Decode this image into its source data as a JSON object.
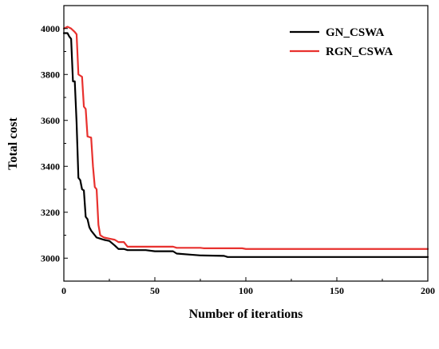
{
  "chart_data": {
    "type": "line",
    "title": "",
    "xlabel": "Number of iterations",
    "ylabel": "Total cost",
    "xlim": [
      0,
      200
    ],
    "ylim": [
      2900,
      4100
    ],
    "xticks": [
      0,
      50,
      100,
      150,
      200
    ],
    "yticks": [
      3000,
      3200,
      3400,
      3600,
      3800,
      4000
    ],
    "grid": false,
    "legend_position": "top-right",
    "series": [
      {
        "name": "GN_CSWA",
        "color": "#000000",
        "points": [
          [
            0,
            3980
          ],
          [
            2,
            3980
          ],
          [
            3,
            3965
          ],
          [
            4,
            3955
          ],
          [
            5,
            3770
          ],
          [
            6,
            3770
          ],
          [
            7,
            3590
          ],
          [
            8,
            3350
          ],
          [
            9,
            3340
          ],
          [
            10,
            3300
          ],
          [
            11,
            3295
          ],
          [
            12,
            3180
          ],
          [
            13,
            3170
          ],
          [
            14,
            3135
          ],
          [
            15,
            3120
          ],
          [
            16,
            3110
          ],
          [
            17,
            3100
          ],
          [
            18,
            3090
          ],
          [
            20,
            3085
          ],
          [
            22,
            3080
          ],
          [
            25,
            3075
          ],
          [
            28,
            3055
          ],
          [
            30,
            3040
          ],
          [
            33,
            3040
          ],
          [
            35,
            3035
          ],
          [
            45,
            3035
          ],
          [
            50,
            3030
          ],
          [
            60,
            3030
          ],
          [
            62,
            3020
          ],
          [
            70,
            3015
          ],
          [
            75,
            3012
          ],
          [
            88,
            3010
          ],
          [
            90,
            3005
          ],
          [
            200,
            3005
          ]
        ]
      },
      {
        "name": "RGN_CSWA",
        "color": "#e8312e",
        "points": [
          [
            0,
            4000
          ],
          [
            2,
            4008
          ],
          [
            4,
            4000
          ],
          [
            6,
            3985
          ],
          [
            7,
            3975
          ],
          [
            8,
            3800
          ],
          [
            10,
            3790
          ],
          [
            11,
            3660
          ],
          [
            12,
            3650
          ],
          [
            13,
            3530
          ],
          [
            15,
            3525
          ],
          [
            16,
            3400
          ],
          [
            17,
            3310
          ],
          [
            18,
            3300
          ],
          [
            19,
            3145
          ],
          [
            20,
            3100
          ],
          [
            22,
            3090
          ],
          [
            25,
            3085
          ],
          [
            28,
            3080
          ],
          [
            30,
            3070
          ],
          [
            33,
            3070
          ],
          [
            35,
            3050
          ],
          [
            60,
            3050
          ],
          [
            62,
            3045
          ],
          [
            75,
            3045
          ],
          [
            77,
            3043
          ],
          [
            98,
            3043
          ],
          [
            100,
            3040
          ],
          [
            200,
            3040
          ]
        ]
      }
    ]
  }
}
